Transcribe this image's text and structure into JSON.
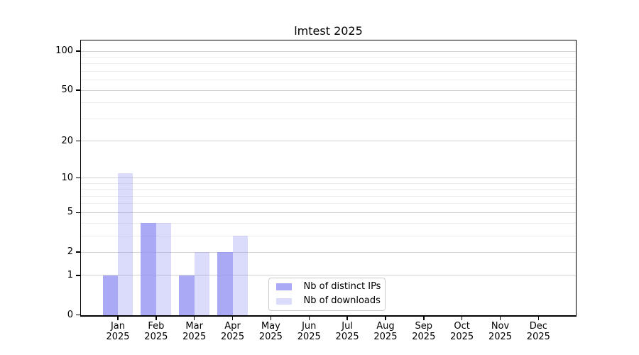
{
  "chart_data": {
    "type": "bar",
    "title": "lmtest 2025",
    "categories": [
      "Jan",
      "Feb",
      "Mar",
      "Apr",
      "May",
      "Jun",
      "Jul",
      "Aug",
      "Sep",
      "Oct",
      "Nov",
      "Dec"
    ],
    "x_tick_year": "2025",
    "series": [
      {
        "name": "Nb of distinct IPs",
        "values": [
          1,
          4,
          1,
          2,
          0,
          0,
          0,
          0,
          0,
          0,
          0,
          0
        ],
        "color": "#8888f2",
        "opacity": 0.72
      },
      {
        "name": "Nb of downloads",
        "values": [
          11,
          4,
          2,
          3,
          0,
          0,
          0,
          0,
          0,
          0,
          0,
          0
        ],
        "color": "#8888f2",
        "opacity": 0.3
      }
    ],
    "yscale": "log1p",
    "ylim": [
      0,
      120
    ],
    "yticks_major": [
      0,
      1,
      2,
      5,
      10,
      20,
      50,
      100
    ],
    "yticks_minor": [
      3,
      4,
      6,
      7,
      8,
      9,
      30,
      40,
      60,
      70,
      80,
      90
    ],
    "grid": "horizontal",
    "legend_position": "lower-center",
    "colors": {
      "major_grid": "#d2d2d2",
      "minor_grid": "#ececec",
      "axis": "#000000",
      "text": "#000000",
      "background": "#ffffff"
    }
  }
}
